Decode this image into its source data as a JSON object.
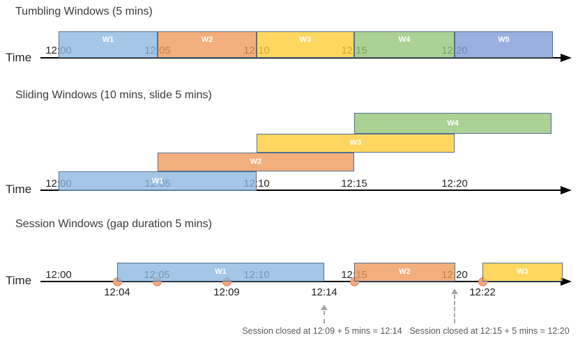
{
  "figure": {
    "colors": {
      "blue": "rgba(140,183,224,0.78)",
      "orange": "rgba(240,151,89,0.78)",
      "yellow": "rgba(255,204,51,0.78)",
      "green": "rgba(148,196,119,0.78)",
      "periwinkle": "rgba(130,158,216,0.82)",
      "box_border": "#52708e",
      "dot_fill": "#f2a47d",
      "dot_border": "#de9066",
      "axis": "#000000",
      "annotation_gray": "#a6a6a6"
    },
    "sections": [
      {
        "id": "tumbling",
        "title": "Tumbling Windows (5 mins)",
        "time_label": "Time",
        "ticks": [
          "12:00",
          "12:05",
          "12:10",
          "12:15",
          "12:20"
        ],
        "windows": [
          {
            "label": "W1",
            "start": "12:00",
            "end": "12:05",
            "color": "blue"
          },
          {
            "label": "W2",
            "start": "12:05",
            "end": "12:10",
            "color": "orange"
          },
          {
            "label": "W3",
            "start": "12:10",
            "end": "12:15",
            "color": "yellow"
          },
          {
            "label": "W4",
            "start": "12:15",
            "end": "12:20",
            "color": "green"
          },
          {
            "label": "W5",
            "start": "12:20",
            "end": "",
            "color": "periwinkle"
          }
        ]
      },
      {
        "id": "sliding",
        "title": "Sliding Windows (10 mins, slide 5 mins)",
        "time_label": "Time",
        "ticks": [
          "12:00",
          "12:05",
          "12:10",
          "12:15",
          "12:20"
        ],
        "windows": [
          {
            "label": "W1",
            "start": "12:00",
            "end": "12:10",
            "color": "blue"
          },
          {
            "label": "W2",
            "start": "12:05",
            "end": "12:15",
            "color": "orange"
          },
          {
            "label": "W3",
            "start": "12:10",
            "end": "12:20",
            "color": "yellow"
          },
          {
            "label": "W4",
            "start": "12:15",
            "end": "",
            "color": "green"
          }
        ]
      },
      {
        "id": "session",
        "title": "Session Windows (gap duration 5 mins)",
        "time_label": "Time",
        "ticks": [
          "12:00",
          "12:05",
          "12:10",
          "12:15",
          "12:20"
        ],
        "windows": [
          {
            "label": "W1",
            "start": "12:04",
            "end": "12:14",
            "color": "blue"
          },
          {
            "label": "W2",
            "start": "12:15",
            "end": "12:20",
            "color": "orange"
          },
          {
            "label": "W3",
            "start": "12:22",
            "end": "",
            "color": "yellow"
          }
        ],
        "event_labels": [
          "12:04",
          "12:09",
          "12:14",
          "12:22"
        ],
        "annotations": [
          "Session closed at 12:09 + 5 mins = 12:14",
          "Session closed at 12:15 + 5 mins = 12:20"
        ]
      }
    ]
  }
}
